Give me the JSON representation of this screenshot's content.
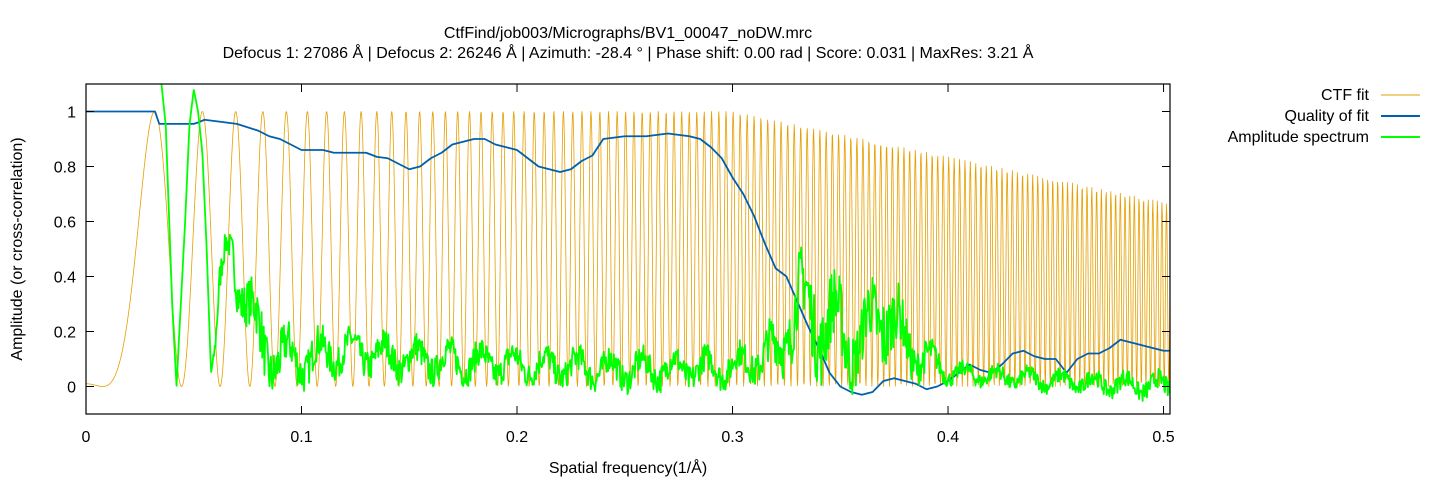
{
  "chart_data": {
    "type": "line",
    "title": "CtfFind/job003/Micrographs/BV1_00047_noDW.mrc",
    "subtitle": "Defocus 1: 27086 Å | Defocus 2: 26246 Å | Azimuth: -28.4 ° | Phase shift: 0.00 rad | Score: 0.031 | MaxRes: 3.21 Å",
    "xlabel": "Spatial frequency(1/Å)",
    "ylabel": "Amplitude (or cross-correlation)",
    "xlim": [
      0,
      0.503
    ],
    "ylim": [
      -0.1,
      1.1
    ],
    "xticks": [
      "0",
      "0.1",
      "0.2",
      "0.3",
      "0.4",
      "0.5"
    ],
    "yticks": [
      "0",
      "0.2",
      "0.4",
      "0.6",
      "0.8",
      "1"
    ],
    "legend_position": "outside-top-right",
    "series": [
      {
        "name": "CTF fit",
        "color": "#e69f00",
        "model": {
          "lambda": 0.0197,
          "cs_A": 27000000,
          "defocus_A": 26666,
          "amp_contrast": 0.1,
          "env_decay": 0.6
        },
        "x": [],
        "values": []
      },
      {
        "name": "Quality of fit",
        "color": "#0060ad",
        "x": [
          0,
          0.032,
          0.034,
          0.05,
          0.052,
          0.055,
          0.065,
          0.07,
          0.08,
          0.085,
          0.09,
          0.095,
          0.1,
          0.11,
          0.115,
          0.12,
          0.13,
          0.135,
          0.14,
          0.145,
          0.15,
          0.155,
          0.16,
          0.165,
          0.17,
          0.175,
          0.18,
          0.185,
          0.19,
          0.195,
          0.2,
          0.205,
          0.21,
          0.215,
          0.22,
          0.225,
          0.23,
          0.235,
          0.24,
          0.25,
          0.26,
          0.27,
          0.28,
          0.285,
          0.29,
          0.295,
          0.3,
          0.305,
          0.31,
          0.315,
          0.32,
          0.325,
          0.33,
          0.335,
          0.34,
          0.345,
          0.35,
          0.355,
          0.36,
          0.365,
          0.37,
          0.375,
          0.38,
          0.385,
          0.39,
          0.395,
          0.4,
          0.405,
          0.41,
          0.415,
          0.42,
          0.425,
          0.43,
          0.435,
          0.44,
          0.445,
          0.45,
          0.455,
          0.46,
          0.465,
          0.47,
          0.475,
          0.48,
          0.485,
          0.49,
          0.495,
          0.5,
          0.503
        ],
        "values": [
          1.0,
          1.0,
          0.955,
          0.955,
          0.96,
          0.97,
          0.96,
          0.955,
          0.93,
          0.91,
          0.9,
          0.88,
          0.86,
          0.86,
          0.85,
          0.85,
          0.85,
          0.835,
          0.83,
          0.81,
          0.79,
          0.8,
          0.83,
          0.85,
          0.88,
          0.89,
          0.9,
          0.9,
          0.88,
          0.87,
          0.86,
          0.83,
          0.8,
          0.79,
          0.78,
          0.79,
          0.82,
          0.84,
          0.9,
          0.91,
          0.91,
          0.92,
          0.91,
          0.9,
          0.87,
          0.83,
          0.76,
          0.7,
          0.62,
          0.52,
          0.43,
          0.4,
          0.31,
          0.22,
          0.14,
          0.05,
          0.0,
          -0.02,
          -0.03,
          -0.02,
          0.02,
          0.03,
          0.02,
          0.01,
          -0.01,
          0.0,
          0.02,
          0.05,
          0.08,
          0.06,
          0.05,
          0.08,
          0.12,
          0.13,
          0.11,
          0.1,
          0.1,
          0.05,
          0.1,
          0.12,
          0.12,
          0.14,
          0.17,
          0.16,
          0.15,
          0.14,
          0.13,
          0.13
        ]
      },
      {
        "name": "Amplitude spectrum",
        "color": "#00ff00",
        "anchors_x": [
          0.035,
          0.037,
          0.04,
          0.042,
          0.044,
          0.046,
          0.048,
          0.05,
          0.052,
          0.054,
          0.056,
          0.058,
          0.06,
          0.062,
          0.065,
          0.068,
          0.07,
          0.075,
          0.08,
          0.085,
          0.09,
          0.1,
          0.12,
          0.15,
          0.2,
          0.25,
          0.3,
          0.31,
          0.32,
          0.33,
          0.34,
          0.35,
          0.36,
          0.37,
          0.38,
          0.4,
          0.45,
          0.5
        ],
        "anchors_y": [
          1.1,
          0.95,
          0.3,
          0.0,
          0.3,
          0.6,
          0.95,
          1.08,
          1.0,
          0.85,
          0.5,
          0.05,
          0.15,
          0.35,
          0.5,
          0.5,
          0.4,
          0.3,
          0.18,
          0.12,
          0.1,
          0.1,
          0.13,
          0.1,
          0.08,
          0.06,
          0.07,
          0.1,
          0.12,
          0.3,
          0.25,
          0.2,
          0.15,
          0.3,
          0.15,
          0.05,
          0.02,
          0.0
        ],
        "noise_amp": [
          0,
          0,
          0,
          0,
          0,
          0,
          0,
          0,
          0,
          0,
          0,
          0,
          0.05,
          0.08,
          0.06,
          0.08,
          0.1,
          0.12,
          0.14,
          0.13,
          0.12,
          0.1,
          0.08,
          0.08,
          0.07,
          0.07,
          0.07,
          0.08,
          0.12,
          0.18,
          0.2,
          0.18,
          0.15,
          0.2,
          0.12,
          0.04,
          0.04,
          0.05
        ],
        "x": [],
        "values": []
      }
    ]
  }
}
